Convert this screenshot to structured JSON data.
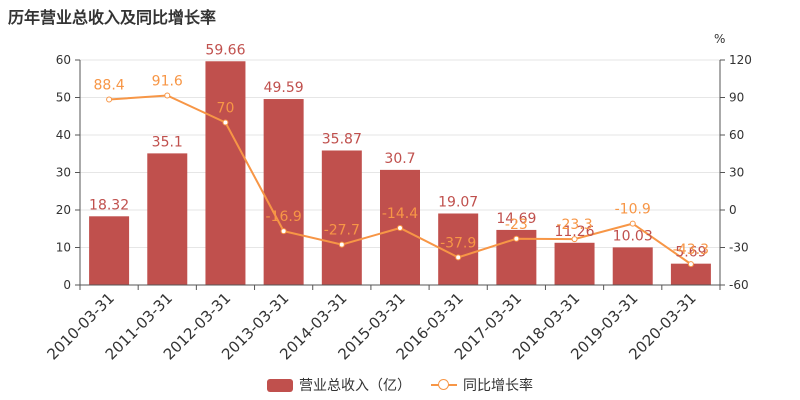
{
  "title": "历年营业总收入及同比增长率",
  "colors": {
    "bar": "#c0504d",
    "line": "#f79646",
    "axis": "#555555",
    "grid": "#e6e6e6",
    "text": "#333333"
  },
  "chart_data": {
    "type": "bar",
    "categories": [
      "2010-03-31",
      "2011-03-31",
      "2012-03-31",
      "2013-03-31",
      "2014-03-31",
      "2015-03-31",
      "2016-03-31",
      "2017-03-31",
      "2018-03-31",
      "2019-03-31",
      "2020-03-31"
    ],
    "series": [
      {
        "name": "营业总收入（亿）",
        "type": "bar",
        "axis": "left",
        "values": [
          18.32,
          35.1,
          59.66,
          49.59,
          35.87,
          30.7,
          19.07,
          14.69,
          11.26,
          10.03,
          5.69
        ],
        "labels": [
          "18.32",
          "35.1",
          "59.66",
          "49.59",
          "35.87",
          "30.7",
          "19.07",
          "14.69",
          "11.26",
          "10.03",
          "5.69"
        ]
      },
      {
        "name": "同比增长率",
        "type": "line",
        "axis": "right",
        "values": [
          88.4,
          91.6,
          70,
          -16.9,
          -27.7,
          -14.4,
          -37.9,
          -23,
          -23.3,
          -10.9,
          -43.3
        ],
        "labels": [
          "88.4",
          "91.6",
          "70",
          "-16.9",
          "-27.7",
          "-14.4",
          "-37.9",
          "-23",
          "-23.3",
          "-10.9",
          "-43.3"
        ]
      }
    ],
    "y_left": {
      "min": 0,
      "max": 60,
      "ticks": [
        "0",
        "10",
        "20",
        "30",
        "40",
        "50",
        "60"
      ]
    },
    "y_right": {
      "unit": "%",
      "min": -60,
      "max": 120,
      "ticks": [
        "-60",
        "-30",
        "0",
        "30",
        "60",
        "90",
        "120"
      ]
    },
    "grid": true,
    "legend": "bottom-center"
  }
}
